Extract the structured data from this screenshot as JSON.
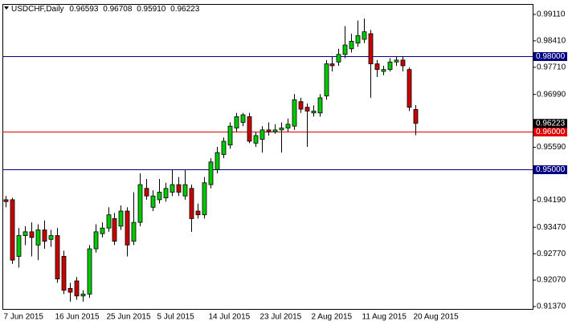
{
  "chart_data": {
    "type": "candlestick",
    "title": "USDCHF,Daily",
    "header_values": [
      {
        "value": 0.96593,
        "label": "0.96593"
      },
      {
        "value": 0.96708,
        "label": "0.96708"
      },
      {
        "value": 0.9591,
        "label": "0.95910"
      },
      {
        "value": 0.96223,
        "label": "0.96223"
      }
    ],
    "categories": [
      "7 Jun 2015",
      null,
      null,
      null,
      null,
      null,
      null,
      null,
      "16 Jun 2015",
      null,
      null,
      null,
      null,
      null,
      null,
      null,
      "25 Jun 2015",
      null,
      null,
      null,
      null,
      null,
      null,
      null,
      "5 Jul 2015",
      null,
      null,
      null,
      null,
      null,
      null,
      null,
      "14 Jul 2015",
      null,
      null,
      null,
      null,
      null,
      null,
      null,
      "23 Jul 2015",
      null,
      null,
      null,
      null,
      null,
      null,
      null,
      "2 Aug 2015",
      null,
      null,
      null,
      null,
      null,
      null,
      null,
      "11 Aug 2015",
      null,
      null,
      null,
      null,
      null,
      null,
      null,
      "20 Aug 2015"
    ],
    "open": [
      0.942,
      0.942,
      0.927,
      0.9325,
      0.9335,
      0.93,
      0.934,
      0.9315,
      0.9325,
      0.927,
      0.9185,
      0.9205,
      0.9165,
      0.917,
      0.929,
      0.933,
      0.9345,
      0.937,
      0.935,
      0.939,
      0.931,
      0.936,
      0.945,
      0.94,
      0.942,
      0.9425,
      0.944,
      0.946,
      0.943,
      0.945,
      0.939,
      0.938,
      0.946,
      0.95,
      0.954,
      0.9565,
      0.961,
      0.9625,
      0.964,
      0.957,
      0.958,
      0.9605,
      0.96,
      0.9605,
      0.961,
      0.9615,
      0.968,
      0.9665,
      0.965,
      0.965,
      0.9695,
      0.978,
      0.9785,
      0.9805,
      0.982,
      0.9835,
      0.9845,
      0.986,
      0.978,
      0.976,
      0.9765,
      0.9785,
      0.979,
      0.9765,
      0.96593
    ],
    "high": [
      0.943,
      0.9425,
      0.9345,
      0.935,
      0.936,
      0.9355,
      0.9365,
      0.934,
      0.9345,
      0.9285,
      0.92,
      0.9215,
      0.918,
      0.93,
      0.9355,
      0.936,
      0.94,
      0.9385,
      0.9405,
      0.94,
      0.944,
      0.949,
      0.9475,
      0.9445,
      0.9475,
      0.9465,
      0.95,
      0.948,
      0.95,
      0.946,
      0.941,
      0.948,
      0.953,
      0.956,
      0.9585,
      0.9625,
      0.965,
      0.965,
      0.965,
      0.96,
      0.9615,
      0.9625,
      0.962,
      0.9625,
      0.9635,
      0.97,
      0.969,
      0.9675,
      0.967,
      0.97,
      0.979,
      0.98,
      0.982,
      0.988,
      0.986,
      0.9895,
      0.99,
      0.987,
      0.979,
      0.9775,
      0.9795,
      0.98,
      0.98,
      0.977,
      0.96708
    ],
    "low": [
      0.94,
      0.925,
      0.924,
      0.93,
      0.927,
      0.926,
      0.929,
      0.9295,
      0.92,
      0.917,
      0.915,
      0.9155,
      0.915,
      0.916,
      0.928,
      0.932,
      0.9335,
      0.93,
      0.934,
      0.927,
      0.93,
      0.935,
      0.942,
      0.939,
      0.941,
      0.9415,
      0.943,
      0.943,
      0.942,
      0.9335,
      0.937,
      0.937,
      0.945,
      0.949,
      0.953,
      0.9555,
      0.96,
      0.9615,
      0.957,
      0.956,
      0.9545,
      0.959,
      0.9595,
      0.9545,
      0.96,
      0.9605,
      0.965,
      0.956,
      0.964,
      0.964,
      0.9685,
      0.976,
      0.9775,
      0.9795,
      0.981,
      0.9825,
      0.9835,
      0.969,
      0.9745,
      0.975,
      0.976,
      0.9775,
      0.976,
      0.9655,
      0.9591
    ],
    "close": [
      0.9415,
      0.926,
      0.9325,
      0.9335,
      0.932,
      0.934,
      0.931,
      0.9325,
      0.921,
      0.918,
      0.9175,
      0.9165,
      0.917,
      0.929,
      0.9335,
      0.9345,
      0.938,
      0.931,
      0.939,
      0.93,
      0.936,
      0.946,
      0.943,
      0.943,
      0.944,
      0.945,
      0.946,
      0.944,
      0.946,
      0.937,
      0.938,
      0.9465,
      0.952,
      0.9545,
      0.9575,
      0.9615,
      0.964,
      0.9645,
      0.9575,
      0.959,
      0.9605,
      0.96,
      0.9605,
      0.961,
      0.962,
      0.9685,
      0.966,
      0.9655,
      0.9655,
      0.969,
      0.978,
      0.9775,
      0.9805,
      0.983,
      0.984,
      0.9855,
      0.9865,
      0.978,
      0.9765,
      0.9765,
      0.9785,
      0.979,
      0.9775,
      0.9665,
      0.96223
    ],
    "current_price": {
      "value": 0.96223,
      "label": "0.96223"
    },
    "up_color": "#00c800",
    "down_color": "#c80000",
    "ylim": [
      0.91306,
      0.99386
    ],
    "yticks": [
      {
        "value": 0.9911,
        "label": "0.99110"
      },
      {
        "value": 0.9841,
        "label": "0.98410"
      },
      {
        "value": 0.9771,
        "label": "0.97710"
      },
      {
        "value": 0.9699,
        "label": "0.96990"
      },
      {
        "value": 0.9559,
        "label": "0.95590"
      },
      {
        "value": 0.9419,
        "label": "0.94190"
      },
      {
        "value": 0.9347,
        "label": "0.93470"
      },
      {
        "value": 0.9277,
        "label": "0.92770"
      },
      {
        "value": 0.9207,
        "label": "0.92070"
      },
      {
        "value": 0.9137,
        "label": "0.91370"
      }
    ],
    "hlines": [
      {
        "value": 0.98,
        "label": "0.98000",
        "color": "#000080"
      },
      {
        "value": 0.96,
        "label": "0.96000",
        "color": "#e00000"
      },
      {
        "value": 0.95,
        "label": "0.95000",
        "color": "#000080"
      }
    ],
    "grid": false
  }
}
